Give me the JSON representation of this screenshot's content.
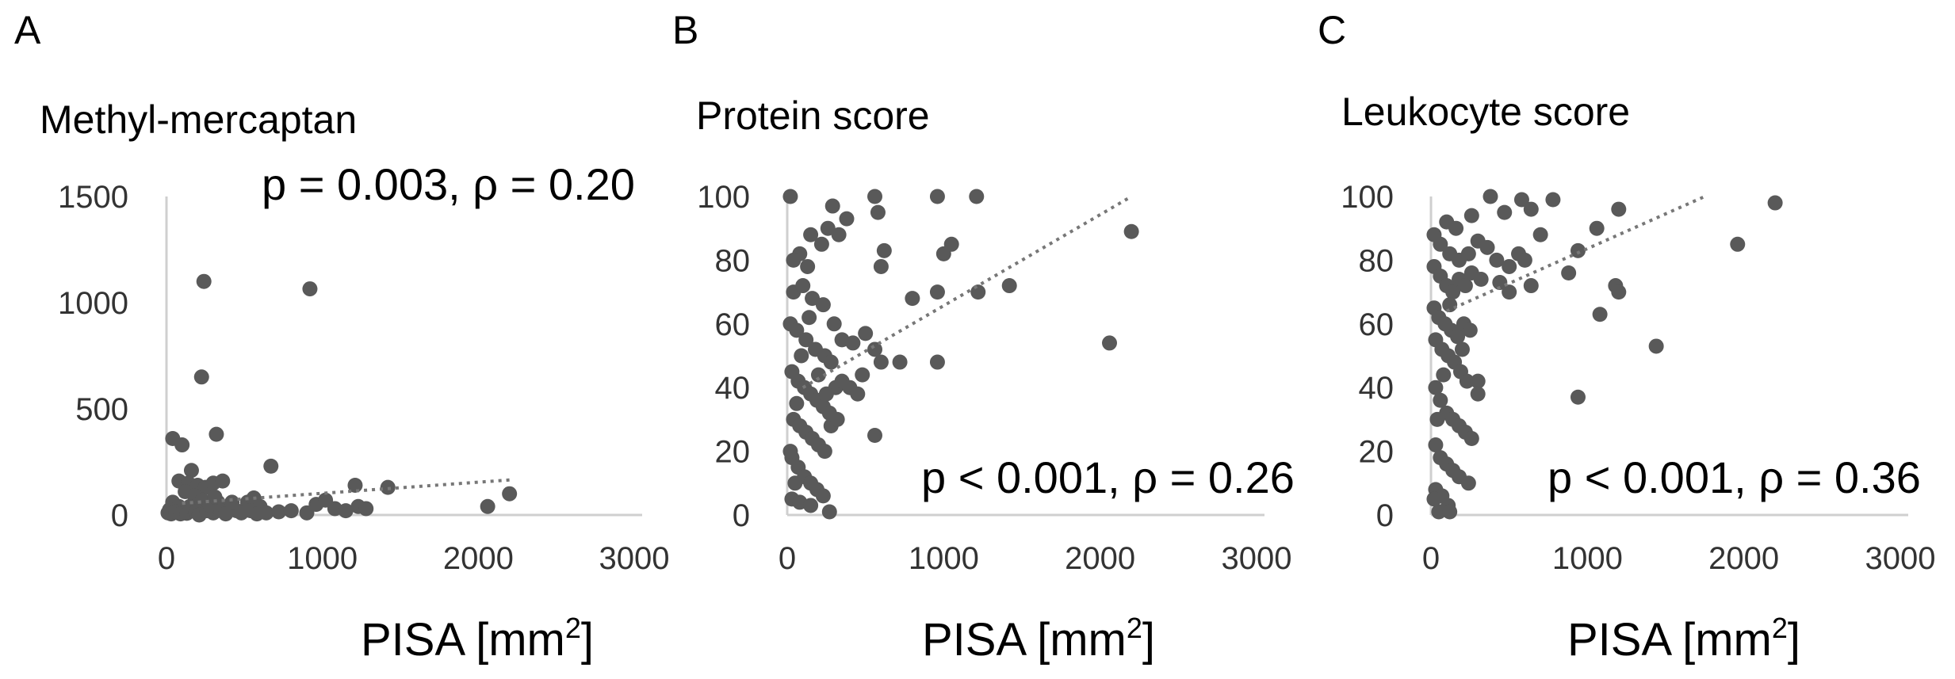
{
  "figure": {
    "point_color": "#595959",
    "trend_color": "#777777",
    "axis_color": "#cfcfcf"
  },
  "chart_data": [
    {
      "panel": "A",
      "type": "scatter",
      "title": "Methyl-mercaptan",
      "annotation": "p = 0.003, ρ = 0.20",
      "xlabel": "PISA [mm",
      "xlabel_sup": "2",
      "xlabel_close": "]",
      "xlim": [
        0,
        3000
      ],
      "ylim": [
        0,
        1500
      ],
      "xticks": [
        0,
        1000,
        2000,
        3000
      ],
      "yticks": [
        0,
        500,
        1000,
        1500
      ],
      "trendline": {
        "x": [
          100,
          2200
        ],
        "y": [
          55,
          165
        ]
      },
      "points": [
        [
          240,
          1100
        ],
        [
          920,
          1065
        ],
        [
          225,
          650
        ],
        [
          320,
          380
        ],
        [
          40,
          360
        ],
        [
          100,
          330
        ],
        [
          670,
          230
        ],
        [
          160,
          210
        ],
        [
          80,
          160
        ],
        [
          140,
          150
        ],
        [
          200,
          140
        ],
        [
          250,
          130
        ],
        [
          300,
          150
        ],
        [
          360,
          160
        ],
        [
          120,
          110
        ],
        [
          180,
          90
        ],
        [
          40,
          60
        ],
        [
          80,
          40
        ],
        [
          110,
          30
        ],
        [
          160,
          20
        ],
        [
          200,
          50
        ],
        [
          230,
          70
        ],
        [
          270,
          30
        ],
        [
          300,
          10
        ],
        [
          330,
          60
        ],
        [
          400,
          40
        ],
        [
          450,
          20
        ],
        [
          520,
          60
        ],
        [
          560,
          80
        ],
        [
          600,
          40
        ],
        [
          640,
          10
        ],
        [
          720,
          15
        ],
        [
          800,
          20
        ],
        [
          900,
          10
        ],
        [
          960,
          50
        ],
        [
          1020,
          70
        ],
        [
          1080,
          30
        ],
        [
          1150,
          20
        ],
        [
          1210,
          140
        ],
        [
          1230,
          40
        ],
        [
          1280,
          30
        ],
        [
          1420,
          130
        ],
        [
          2060,
          40
        ],
        [
          2200,
          100
        ],
        [
          10,
          10
        ],
        [
          20,
          25
        ],
        [
          30,
          5
        ],
        [
          60,
          15
        ],
        [
          90,
          5
        ],
        [
          130,
          8
        ],
        [
          150,
          40
        ],
        [
          190,
          15
        ],
        [
          210,
          0
        ],
        [
          260,
          20
        ],
        [
          280,
          45
        ],
        [
          310,
          85
        ],
        [
          350,
          20
        ],
        [
          380,
          5
        ],
        [
          420,
          60
        ],
        [
          480,
          10
        ],
        [
          540,
          20
        ],
        [
          580,
          5
        ]
      ]
    },
    {
      "panel": "B",
      "type": "scatter",
      "title": "Protein score",
      "annotation": "p < 0.001, ρ = 0.26",
      "xlabel": "PISA [mm",
      "xlabel_sup": "2",
      "xlabel_close": "]",
      "xlim": [
        0,
        3000
      ],
      "ylim": [
        0,
        100
      ],
      "xticks": [
        0,
        1000,
        2000,
        3000
      ],
      "yticks": [
        0,
        20,
        40,
        60,
        80,
        100
      ],
      "trendline": {
        "x": [
          100,
          2200
        ],
        "y": [
          40,
          100
        ]
      },
      "points": [
        [
          20,
          100
        ],
        [
          560,
          100
        ],
        [
          960,
          100
        ],
        [
          1210,
          100
        ],
        [
          290,
          97
        ],
        [
          380,
          93
        ],
        [
          150,
          88
        ],
        [
          220,
          85
        ],
        [
          80,
          82
        ],
        [
          40,
          80
        ],
        [
          130,
          78
        ],
        [
          260,
          90
        ],
        [
          330,
          88
        ],
        [
          620,
          83
        ],
        [
          600,
          78
        ],
        [
          1000,
          82
        ],
        [
          1050,
          85
        ],
        [
          1220,
          70
        ],
        [
          1420,
          72
        ],
        [
          960,
          70
        ],
        [
          800,
          68
        ],
        [
          2200,
          89
        ],
        [
          580,
          95
        ],
        [
          40,
          70
        ],
        [
          100,
          72
        ],
        [
          160,
          68
        ],
        [
          230,
          66
        ],
        [
          300,
          60
        ],
        [
          20,
          60
        ],
        [
          60,
          58
        ],
        [
          120,
          55
        ],
        [
          180,
          52
        ],
        [
          240,
          50
        ],
        [
          280,
          48
        ],
        [
          350,
          55
        ],
        [
          420,
          54
        ],
        [
          500,
          57
        ],
        [
          560,
          52
        ],
        [
          600,
          48
        ],
        [
          720,
          48
        ],
        [
          960,
          48
        ],
        [
          2060,
          54
        ],
        [
          30,
          45
        ],
        [
          70,
          42
        ],
        [
          110,
          40
        ],
        [
          150,
          38
        ],
        [
          190,
          36
        ],
        [
          230,
          34
        ],
        [
          270,
          32
        ],
        [
          310,
          40
        ],
        [
          350,
          42
        ],
        [
          400,
          40
        ],
        [
          450,
          38
        ],
        [
          480,
          44
        ],
        [
          40,
          30
        ],
        [
          80,
          28
        ],
        [
          120,
          26
        ],
        [
          160,
          24
        ],
        [
          200,
          22
        ],
        [
          240,
          20
        ],
        [
          280,
          28
        ],
        [
          320,
          30
        ],
        [
          560,
          25
        ],
        [
          30,
          18
        ],
        [
          70,
          15
        ],
        [
          110,
          12
        ],
        [
          150,
          10
        ],
        [
          190,
          8
        ],
        [
          230,
          6
        ],
        [
          30,
          5
        ],
        [
          80,
          4
        ],
        [
          150,
          3
        ],
        [
          270,
          1
        ],
        [
          60,
          35
        ],
        [
          90,
          50
        ],
        [
          140,
          62
        ],
        [
          200,
          44
        ],
        [
          250,
          38
        ],
        [
          20,
          20
        ],
        [
          50,
          10
        ]
      ]
    },
    {
      "panel": "C",
      "type": "scatter",
      "title": "Leukocyte score",
      "annotation": "p < 0.001, ρ = 0.36",
      "xlabel": "PISA [mm",
      "xlabel_sup": "2",
      "xlabel_close": "]",
      "xlim": [
        0,
        3000
      ],
      "ylim": [
        0,
        100
      ],
      "xticks": [
        0,
        1000,
        2000,
        3000
      ],
      "yticks": [
        0,
        20,
        40,
        60,
        80,
        100
      ],
      "trendline": {
        "x": [
          100,
          1750
        ],
        "y": [
          64,
          100
        ]
      },
      "points": [
        [
          380,
          100
        ],
        [
          580,
          99
        ],
        [
          780,
          99
        ],
        [
          2200,
          98
        ],
        [
          640,
          96
        ],
        [
          1200,
          96
        ],
        [
          470,
          95
        ],
        [
          260,
          94
        ],
        [
          100,
          92
        ],
        [
          160,
          90
        ],
        [
          1060,
          90
        ],
        [
          1960,
          85
        ],
        [
          20,
          88
        ],
        [
          60,
          85
        ],
        [
          120,
          82
        ],
        [
          180,
          80
        ],
        [
          240,
          82
        ],
        [
          300,
          86
        ],
        [
          360,
          84
        ],
        [
          420,
          80
        ],
        [
          500,
          78
        ],
        [
          560,
          82
        ],
        [
          600,
          80
        ],
        [
          700,
          88
        ],
        [
          940,
          83
        ],
        [
          20,
          78
        ],
        [
          60,
          75
        ],
        [
          100,
          72
        ],
        [
          140,
          70
        ],
        [
          180,
          74
        ],
        [
          220,
          72
        ],
        [
          260,
          76
        ],
        [
          320,
          74
        ],
        [
          440,
          73
        ],
        [
          500,
          70
        ],
        [
          640,
          72
        ],
        [
          880,
          76
        ],
        [
          1180,
          72
        ],
        [
          1200,
          70
        ],
        [
          1080,
          63
        ],
        [
          20,
          65
        ],
        [
          50,
          62
        ],
        [
          90,
          60
        ],
        [
          130,
          58
        ],
        [
          170,
          56
        ],
        [
          210,
          60
        ],
        [
          250,
          58
        ],
        [
          30,
          55
        ],
        [
          70,
          52
        ],
        [
          110,
          50
        ],
        [
          150,
          48
        ],
        [
          190,
          45
        ],
        [
          230,
          42
        ],
        [
          300,
          42
        ],
        [
          300,
          38
        ],
        [
          1440,
          53
        ],
        [
          940,
          37
        ],
        [
          30,
          40
        ],
        [
          60,
          36
        ],
        [
          100,
          32
        ],
        [
          140,
          30
        ],
        [
          180,
          28
        ],
        [
          220,
          26
        ],
        [
          260,
          24
        ],
        [
          30,
          22
        ],
        [
          60,
          18
        ],
        [
          100,
          16
        ],
        [
          140,
          14
        ],
        [
          180,
          12
        ],
        [
          240,
          10
        ],
        [
          30,
          8
        ],
        [
          70,
          6
        ],
        [
          110,
          3
        ],
        [
          50,
          1
        ],
        [
          120,
          1
        ],
        [
          20,
          5
        ],
        [
          80,
          44
        ],
        [
          120,
          66
        ],
        [
          200,
          52
        ],
        [
          40,
          30
        ]
      ]
    }
  ]
}
